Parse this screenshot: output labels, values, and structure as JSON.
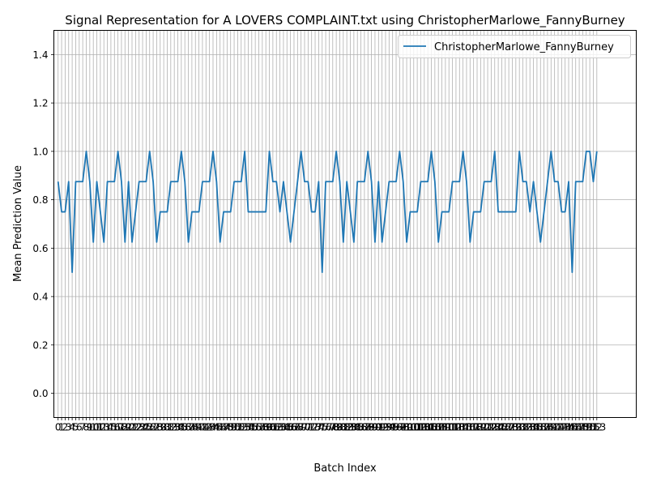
{
  "chart_data": {
    "type": "line",
    "title": "Signal Representation for A LOVERS COMPLAINT.txt using ChristopherMarlowe_FannyBurney",
    "xlabel": "Batch Index",
    "ylabel": "Mean Prediction Value",
    "ylim": [
      -0.1,
      1.5
    ],
    "xlim": [
      -1.2,
      164.2
    ],
    "yticks": [
      "0.0",
      "0.2",
      "0.4",
      "0.6",
      "0.8",
      "1.0",
      "1.2",
      "1.4"
    ],
    "ytick_values": [
      0,
      0.2,
      0.4,
      0.6,
      0.8,
      1.0,
      1.2,
      1.4
    ],
    "xtick_start": 0,
    "xtick_end": 153,
    "grid": true,
    "legend_position": "top-right",
    "series_color": "#1f77b4",
    "series": [
      {
        "name": "ChristopherMarlowe_FannyBurney",
        "x_start": 0,
        "values": [
          0.875,
          0.75,
          0.75,
          0.875,
          0.5,
          0.875,
          0.875,
          0.875,
          1.0,
          0.875,
          0.625,
          0.875,
          0.75,
          0.625,
          0.875,
          0.875,
          0.875,
          1.0,
          0.875,
          0.625,
          0.875,
          0.625,
          0.75,
          0.875,
          0.875,
          0.875,
          1.0,
          0.875,
          0.625,
          0.75,
          0.75,
          0.75,
          0.875,
          0.875,
          0.875,
          1.0,
          0.875,
          0.625,
          0.75,
          0.75,
          0.75,
          0.875,
          0.875,
          0.875,
          1.0,
          0.875,
          0.625,
          0.75,
          0.75,
          0.75,
          0.875,
          0.875,
          0.875,
          1.0,
          0.75,
          0.75,
          0.75,
          0.75,
          0.75,
          0.75,
          1.0,
          0.875,
          0.875,
          0.75,
          0.875,
          0.75,
          0.625,
          0.75,
          0.875,
          1.0,
          0.875,
          0.875,
          0.75,
          0.75,
          0.875,
          0.5,
          0.875,
          0.875,
          0.875,
          1.0,
          0.875,
          0.625,
          0.875,
          0.75,
          0.625,
          0.875,
          0.875,
          0.875,
          1.0,
          0.875,
          0.625,
          0.875,
          0.625,
          0.75,
          0.875,
          0.875,
          0.875,
          1.0,
          0.875,
          0.625,
          0.75,
          0.75,
          0.75,
          0.875,
          0.875,
          0.875,
          1.0,
          0.875,
          0.625,
          0.75,
          0.75,
          0.75,
          0.875,
          0.875,
          0.875,
          1.0,
          0.875,
          0.625,
          0.75,
          0.75,
          0.75,
          0.875,
          0.875,
          0.875,
          1.0,
          0.75,
          0.75,
          0.75,
          0.75,
          0.75,
          0.75,
          1.0,
          0.875,
          0.875,
          0.75,
          0.875,
          0.75,
          0.625,
          0.75,
          0.875,
          1.0,
          0.875,
          0.875,
          0.75,
          0.75,
          0.875,
          0.5,
          0.875,
          0.875,
          0.875,
          1.0,
          1.0,
          0.875,
          1.0
        ]
      }
    ]
  }
}
